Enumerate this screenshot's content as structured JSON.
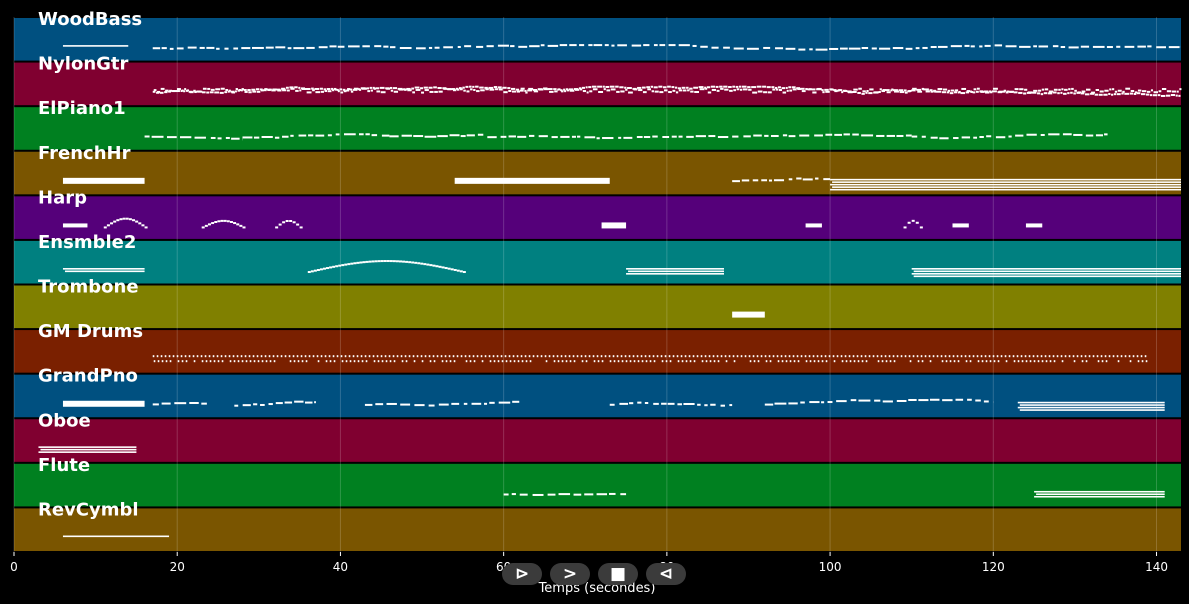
{
  "chart_data": {
    "type": "piano-roll",
    "xlabel": "Temps (secondes)",
    "xlim": [
      0,
      143
    ],
    "xticks": [
      0,
      20,
      40,
      60,
      80,
      100,
      120,
      140
    ],
    "grid": true,
    "tracks": [
      {
        "name": "WoodBass",
        "color": "#005080",
        "regions": [
          [
            6,
            14,
            1,
            "stripe"
          ],
          [
            17,
            143,
            3,
            "dash"
          ]
        ]
      },
      {
        "name": "NylonGtr",
        "color": "#800030",
        "regions": [
          [
            17,
            143,
            6,
            "dense"
          ]
        ]
      },
      {
        "name": "ElPiano1",
        "color": "#008020",
        "regions": [
          [
            16,
            28,
            3,
            "dash"
          ],
          [
            28,
            46,
            3,
            "dash"
          ],
          [
            46,
            58,
            3,
            "dash"
          ],
          [
            58,
            88,
            3,
            "dash"
          ],
          [
            88,
            110,
            3,
            "dash"
          ],
          [
            110,
            134,
            3,
            "dash"
          ]
        ]
      },
      {
        "name": "FrenchHr",
        "color": "#7a5500",
        "regions": [
          [
            6,
            16,
            2,
            "block"
          ],
          [
            54,
            73,
            2,
            "block"
          ],
          [
            88,
            100,
            4,
            "dash"
          ],
          [
            100,
            143,
            5,
            "stripe"
          ]
        ]
      },
      {
        "name": "Harp",
        "color": "#55007a",
        "regions": [
          [
            6,
            9,
            1,
            "block"
          ],
          [
            11,
            16,
            4,
            "arc"
          ],
          [
            23,
            28,
            3,
            "arc"
          ],
          [
            32,
            35,
            3,
            "arc"
          ],
          [
            72,
            75,
            2,
            "block"
          ],
          [
            97,
            99,
            1,
            "block"
          ],
          [
            109,
            111,
            3,
            "arc"
          ],
          [
            115,
            117,
            1,
            "block"
          ],
          [
            124,
            126,
            1,
            "block"
          ]
        ]
      },
      {
        "name": "Ensmble2",
        "color": "#008080",
        "regions": [
          [
            6,
            16,
            2,
            "stripe"
          ],
          [
            36,
            55,
            5,
            "arc"
          ],
          [
            75,
            87,
            3,
            "stripe"
          ],
          [
            110,
            143,
            4,
            "stripe"
          ]
        ]
      },
      {
        "name": "Trombone",
        "color": "#808000",
        "regions": [
          [
            88,
            92,
            2,
            "block"
          ]
        ]
      },
      {
        "name": "GM Drums",
        "color": "#7a2000",
        "regions": [
          [
            17,
            139,
            8,
            "drums"
          ]
        ]
      },
      {
        "name": "GrandPno",
        "color": "#005080",
        "regions": [
          [
            6,
            16,
            2,
            "block"
          ],
          [
            17,
            24,
            4,
            "dash"
          ],
          [
            27,
            37,
            4,
            "dash"
          ],
          [
            43,
            62,
            5,
            "dash"
          ],
          [
            73,
            88,
            4,
            "dash"
          ],
          [
            92,
            120,
            5,
            "dash"
          ],
          [
            123,
            141,
            4,
            "stripe"
          ]
        ]
      },
      {
        "name": "Oboe",
        "color": "#800030",
        "regions": [
          [
            3,
            15,
            3,
            "stripe"
          ]
        ]
      },
      {
        "name": "Flute",
        "color": "#008020",
        "regions": [
          [
            60,
            75,
            3,
            "dash"
          ],
          [
            125,
            141,
            3,
            "stripe"
          ]
        ]
      },
      {
        "name": "RevCymbl",
        "color": "#7a5500",
        "regions": [
          [
            6,
            19,
            1,
            "stripe"
          ]
        ]
      }
    ]
  },
  "controls": [
    {
      "label": "⊳",
      "icon": "play-icon"
    },
    {
      "label": ">",
      "icon": "fast-forward-icon"
    },
    {
      "label": "■",
      "icon": "stop-icon"
    },
    {
      "label": "⊲",
      "icon": "rewind-icon"
    }
  ]
}
